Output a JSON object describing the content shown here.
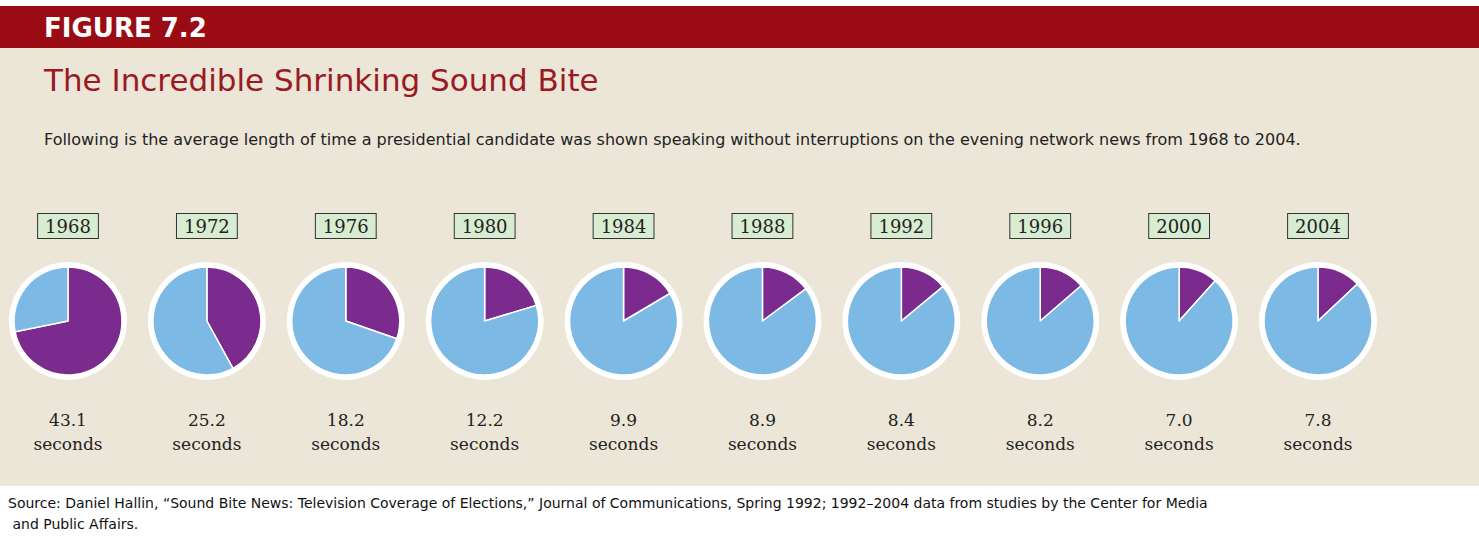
{
  "chart_data": {
    "type": "pie",
    "figure_label": "FIGURE 7.2",
    "title": "The Incredible Shrinking Sound Bite",
    "subtitle": "Following is the average length of time a presidential candidate was shown speaking without interruptions on the evening network news from 1968 to 2004.",
    "source": "Source: Daniel Hallin, “Sound Bite News: Television Coverage of Elections,” Journal of Communications, Spring 1992; 1992–2004 data from studies by the Center for Media and Public Affairs.",
    "categories": [
      "1968",
      "1972",
      "1976",
      "1980",
      "1984",
      "1988",
      "1992",
      "1996",
      "2000",
      "2004"
    ],
    "values": [
      43.1,
      25.2,
      18.2,
      12.2,
      9.9,
      8.9,
      8.4,
      8.2,
      7.0,
      7.8
    ],
    "value_labels": [
      "43.1 seconds",
      "25.2 seconds",
      "18.2 seconds",
      "12.2 seconds",
      "9.9 seconds",
      "8.9 seconds",
      "8.4 seconds",
      "8.2 seconds",
      "7.0 seconds",
      "7.8 seconds"
    ],
    "full_circle": 60,
    "colors": [
      "#7b2a8e",
      "#7db9e5"
    ],
    "data_labels": true
  }
}
